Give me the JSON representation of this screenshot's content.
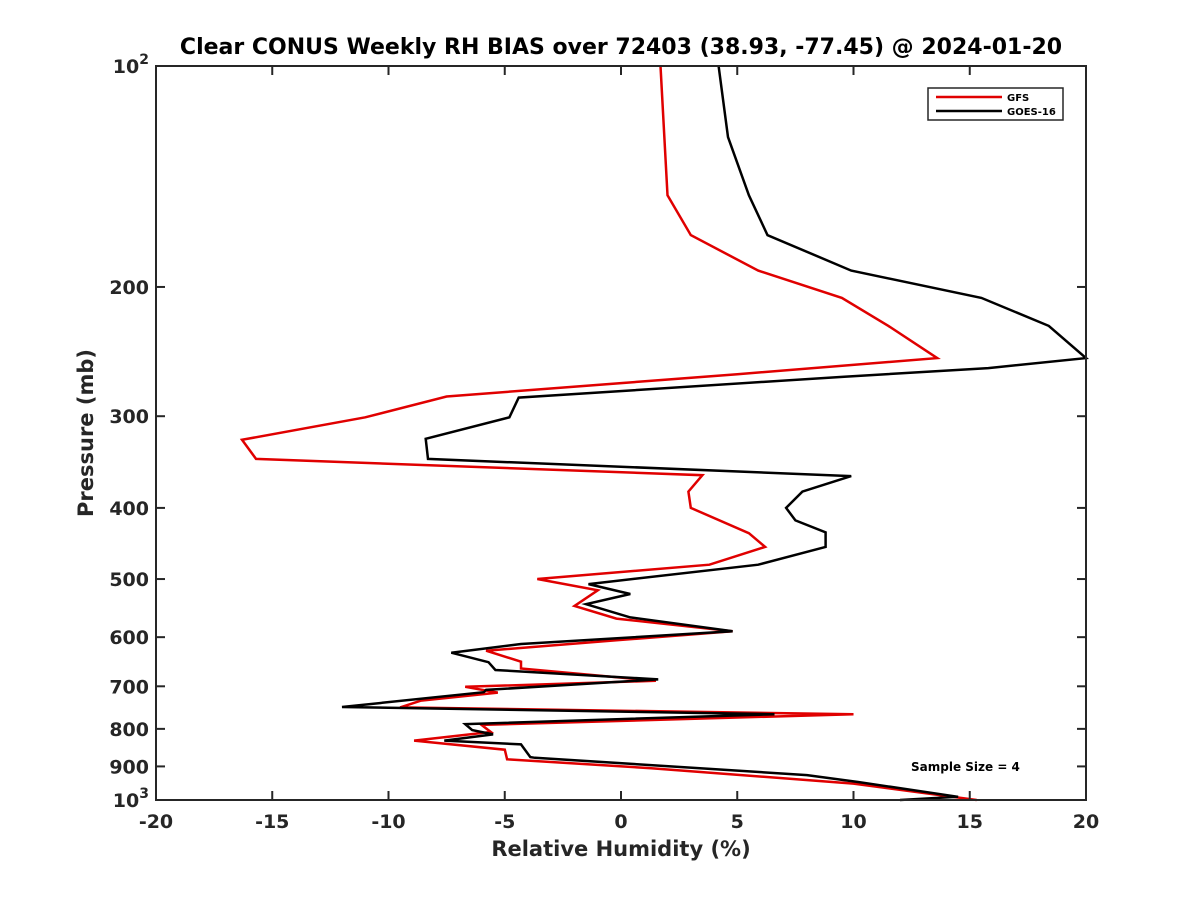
{
  "chart_data": {
    "type": "line",
    "title": "Clear CONUS Weekly RH BIAS over 72403 (38.93, -77.45) @ 2024-01-20",
    "xlabel": "Relative Humidity (%)",
    "ylabel": "Pressure (mb)",
    "xlim": [
      -20,
      20
    ],
    "ylim": [
      100,
      1000
    ],
    "y_scale": "log",
    "y_reversed": true,
    "x_ticks": [
      -20,
      -15,
      -10,
      -5,
      0,
      5,
      10,
      15,
      20
    ],
    "x_tick_labels": [
      "-20",
      "-15",
      "-10",
      "-5",
      "0",
      "5",
      "10",
      "15",
      "20"
    ],
    "y_ticks": [
      100,
      200,
      300,
      400,
      500,
      600,
      700,
      800,
      900,
      1000
    ],
    "y_tick_labels": [
      {
        "base": "10",
        "exp": "2"
      },
      {
        "base": "200",
        "exp": ""
      },
      {
        "base": "300",
        "exp": ""
      },
      {
        "base": "400",
        "exp": ""
      },
      {
        "base": "500",
        "exp": ""
      },
      {
        "base": "600",
        "exp": ""
      },
      {
        "base": "700",
        "exp": ""
      },
      {
        "base": "800",
        "exp": ""
      },
      {
        "base": "900",
        "exp": ""
      },
      {
        "base": "10",
        "exp": "3"
      }
    ],
    "grid": false,
    "legend_position": "top-right",
    "annotation": "Sample Size = 4",
    "series": [
      {
        "name": "GFS",
        "color": "#e00000",
        "points": [
          [
            1.7,
            100
          ],
          [
            2.0,
            150
          ],
          [
            3.0,
            170
          ],
          [
            5.9,
            190
          ],
          [
            9.5,
            207
          ],
          [
            11.5,
            226
          ],
          [
            13.6,
            250
          ],
          [
            5.0,
            263
          ],
          [
            -7.5,
            282
          ],
          [
            -11.0,
            301
          ],
          [
            -16.3,
            323
          ],
          [
            -15.7,
            343
          ],
          [
            3.5,
            361
          ],
          [
            2.9,
            380
          ],
          [
            3.0,
            400
          ],
          [
            5.5,
            433
          ],
          [
            6.2,
            452
          ],
          [
            3.8,
            478
          ],
          [
            -3.6,
            500
          ],
          [
            -1.0,
            518
          ],
          [
            -2.0,
            544
          ],
          [
            -0.2,
            566
          ],
          [
            4.8,
            589
          ],
          [
            -0.2,
            606
          ],
          [
            -5.8,
            626
          ],
          [
            -4.3,
            648
          ],
          [
            -4.3,
            662
          ],
          [
            1.5,
            688
          ],
          [
            -6.7,
            701
          ],
          [
            -5.3,
            714
          ],
          [
            -8.6,
            732
          ],
          [
            -9.5,
            748
          ],
          [
            10.0,
            764
          ],
          [
            -6.0,
            790
          ],
          [
            -5.6,
            808
          ],
          [
            -8.9,
            830
          ],
          [
            -5.0,
            854
          ],
          [
            -4.9,
            880
          ],
          [
            1.3,
            905
          ],
          [
            10.0,
            950
          ],
          [
            15.3,
            1000
          ]
        ]
      },
      {
        "name": "GOES-16",
        "color": "#000000",
        "points": [
          [
            4.2,
            100
          ],
          [
            4.6,
            125
          ],
          [
            5.5,
            150
          ],
          [
            6.3,
            170
          ],
          [
            9.9,
            190
          ],
          [
            15.5,
            207
          ],
          [
            18.4,
            226
          ],
          [
            20.0,
            250
          ],
          [
            15.8,
            258
          ],
          [
            9.6,
            265
          ],
          [
            -4.4,
            283
          ],
          [
            -4.8,
            301
          ],
          [
            -8.4,
            322
          ],
          [
            -8.3,
            343
          ],
          [
            9.9,
            362
          ],
          [
            7.8,
            380
          ],
          [
            7.1,
            400
          ],
          [
            7.5,
            416
          ],
          [
            8.8,
            432
          ],
          [
            8.8,
            452
          ],
          [
            5.9,
            478
          ],
          [
            -1.4,
            508
          ],
          [
            0.4,
            524
          ],
          [
            -1.5,
            541
          ],
          [
            0.4,
            564
          ],
          [
            4.8,
            589
          ],
          [
            -4.3,
            613
          ],
          [
            -7.3,
            630
          ],
          [
            -5.7,
            649
          ],
          [
            -5.4,
            665
          ],
          [
            1.6,
            685
          ],
          [
            -5.8,
            708
          ],
          [
            -5.9,
            713
          ],
          [
            -12.0,
            747
          ],
          [
            6.6,
            764
          ],
          [
            -6.7,
            788
          ],
          [
            -6.4,
            803
          ],
          [
            -5.5,
            814
          ],
          [
            -7.6,
            830
          ],
          [
            -4.3,
            840
          ],
          [
            -3.9,
            874
          ],
          [
            -3.7,
            876
          ],
          [
            3.4,
            905
          ],
          [
            8.0,
            925
          ],
          [
            10.2,
            945
          ],
          [
            14.5,
            990
          ],
          [
            12.0,
            1000
          ]
        ]
      }
    ]
  }
}
